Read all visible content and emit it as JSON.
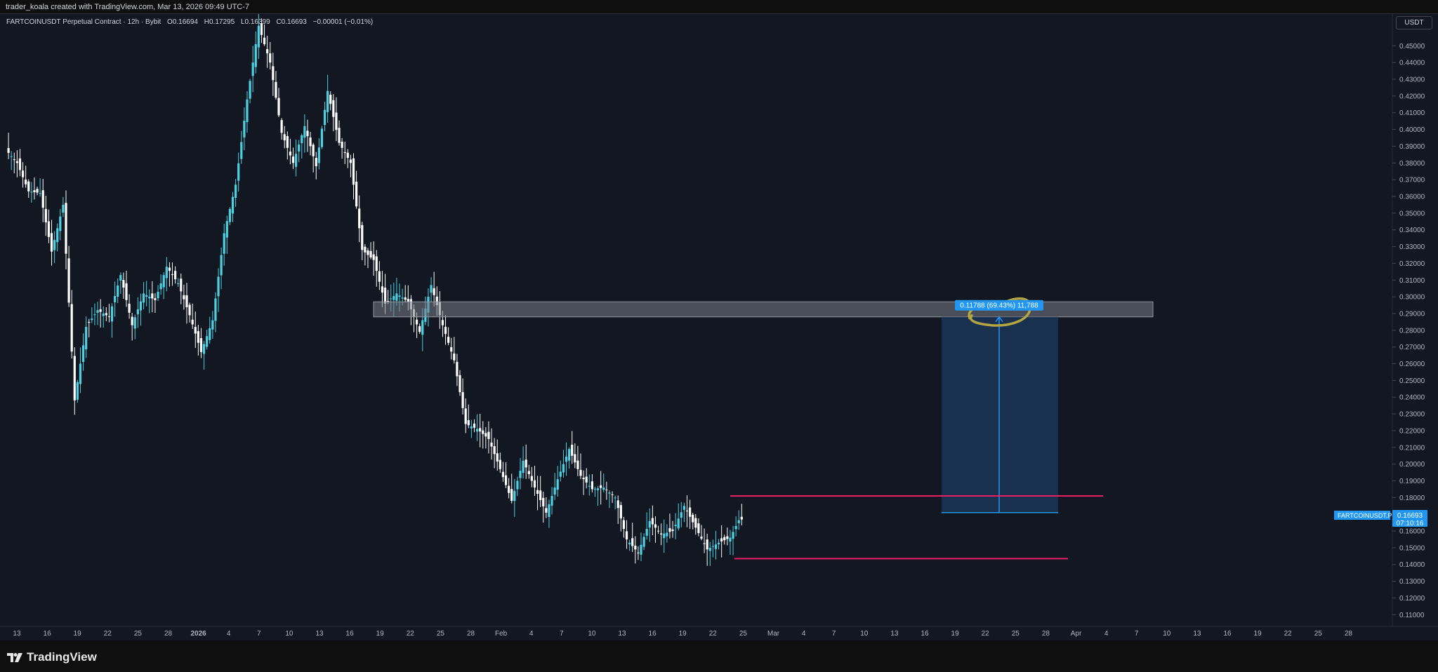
{
  "header": {
    "credit": "trader_koala created with TradingView.com, Mar 13, 2026 09:49 UTC-7"
  },
  "footer": {
    "brand": "TradingView"
  },
  "symbol": {
    "name": "FARTCOINUSDT Perpetual Contract · 12h · Bybit",
    "o_label": "O",
    "o": "0.16694",
    "h_label": "H",
    "h": "0.17295",
    "l_label": "L",
    "l": "0.16399",
    "c_label": "C",
    "c": "0.16693",
    "change": "−0.00001 (−0.01%)"
  },
  "currency": "USDT",
  "price_tag": {
    "symbol": "FARTCOINUSDT.P",
    "price": "0.16693",
    "countdown": "07:10:16"
  },
  "measure_label": "0.11788 (69.43%) 11,788",
  "colors": {
    "background": "#131722",
    "up": "#4dd0e1",
    "down": "#ffffff",
    "range_lines": "#e91e63",
    "resistance_zone": "#787b86",
    "projection": "#1e3a5f",
    "arrow": "#2196f3",
    "circle": "#b5a642",
    "price_tag": "#2196f3"
  },
  "chart_data": {
    "type": "candlestick",
    "timeframe": "12h",
    "x_labels": [
      "13",
      "16",
      "19",
      "22",
      "25",
      "28",
      "2026",
      "4",
      "7",
      "10",
      "13",
      "16",
      "19",
      "22",
      "25",
      "28",
      "Feb",
      "4",
      "7",
      "10",
      "13",
      "16",
      "19",
      "22",
      "25",
      "Mar",
      "4",
      "7",
      "10",
      "13",
      "16",
      "19",
      "22",
      "25",
      "28",
      "Apr",
      "4",
      "7",
      "10",
      "13",
      "16",
      "19",
      "22",
      "25",
      "28"
    ],
    "y_ticks": [
      "0.45000",
      "0.44000",
      "0.43000",
      "0.42000",
      "0.41000",
      "0.40000",
      "0.39000",
      "0.38000",
      "0.37000",
      "0.36000",
      "0.35000",
      "0.34000",
      "0.33000",
      "0.32000",
      "0.31000",
      "0.30000",
      "0.29000",
      "0.28000",
      "0.27000",
      "0.26000",
      "0.25000",
      "0.24000",
      "0.23000",
      "0.22000",
      "0.21000",
      "0.20000",
      "0.19000",
      "0.18000",
      "0.17000",
      "0.16000",
      "0.15000",
      "0.14000",
      "0.13000",
      "0.12000",
      "0.11000"
    ],
    "ylim": [
      0.103,
      0.469
    ],
    "price_path": [
      [
        0,
        0.388
      ],
      [
        4,
        0.38
      ],
      [
        8,
        0.363
      ],
      [
        12,
        0.362
      ],
      [
        16,
        0.327
      ],
      [
        20,
        0.355
      ],
      [
        24,
        0.238
      ],
      [
        28,
        0.282
      ],
      [
        32,
        0.292
      ],
      [
        36,
        0.288
      ],
      [
        40,
        0.313
      ],
      [
        44,
        0.283
      ],
      [
        48,
        0.302
      ],
      [
        52,
        0.298
      ],
      [
        56,
        0.318
      ],
      [
        60,
        0.308
      ],
      [
        64,
        0.289
      ],
      [
        68,
        0.267
      ],
      [
        72,
        0.286
      ],
      [
        76,
        0.338
      ],
      [
        80,
        0.367
      ],
      [
        84,
        0.418
      ],
      [
        88,
        0.462
      ],
      [
        92,
        0.44
      ],
      [
        96,
        0.398
      ],
      [
        100,
        0.38
      ],
      [
        104,
        0.402
      ],
      [
        108,
        0.378
      ],
      [
        112,
        0.423
      ],
      [
        116,
        0.392
      ],
      [
        120,
        0.38
      ],
      [
        124,
        0.328
      ],
      [
        128,
        0.322
      ],
      [
        132,
        0.296
      ],
      [
        136,
        0.302
      ],
      [
        140,
        0.297
      ],
      [
        144,
        0.279
      ],
      [
        148,
        0.307
      ],
      [
        152,
        0.283
      ],
      [
        156,
        0.262
      ],
      [
        160,
        0.224
      ],
      [
        164,
        0.221
      ],
      [
        168,
        0.215
      ],
      [
        172,
        0.197
      ],
      [
        176,
        0.178
      ],
      [
        180,
        0.202
      ],
      [
        184,
        0.186
      ],
      [
        188,
        0.171
      ],
      [
        192,
        0.191
      ],
      [
        196,
        0.209
      ],
      [
        200,
        0.193
      ],
      [
        204,
        0.185
      ],
      [
        208,
        0.186
      ],
      [
        212,
        0.18
      ],
      [
        216,
        0.155
      ],
      [
        220,
        0.147
      ],
      [
        224,
        0.166
      ],
      [
        228,
        0.158
      ],
      [
        232,
        0.16
      ],
      [
        236,
        0.175
      ],
      [
        240,
        0.162
      ],
      [
        244,
        0.149
      ],
      [
        248,
        0.153
      ],
      [
        252,
        0.156
      ],
      [
        256,
        0.17
      ]
    ],
    "last_price": 0.16693,
    "annotations": {
      "resistance_zone": {
        "from": 0.288,
        "to": 0.297
      },
      "range_high": 0.181,
      "range_low": 0.1435,
      "projection": {
        "from": 0.171,
        "to": 0.288,
        "change": 0.11788,
        "percent": 69.43,
        "ticks": 11788
      }
    },
    "xlabel": "",
    "ylabel": ""
  }
}
